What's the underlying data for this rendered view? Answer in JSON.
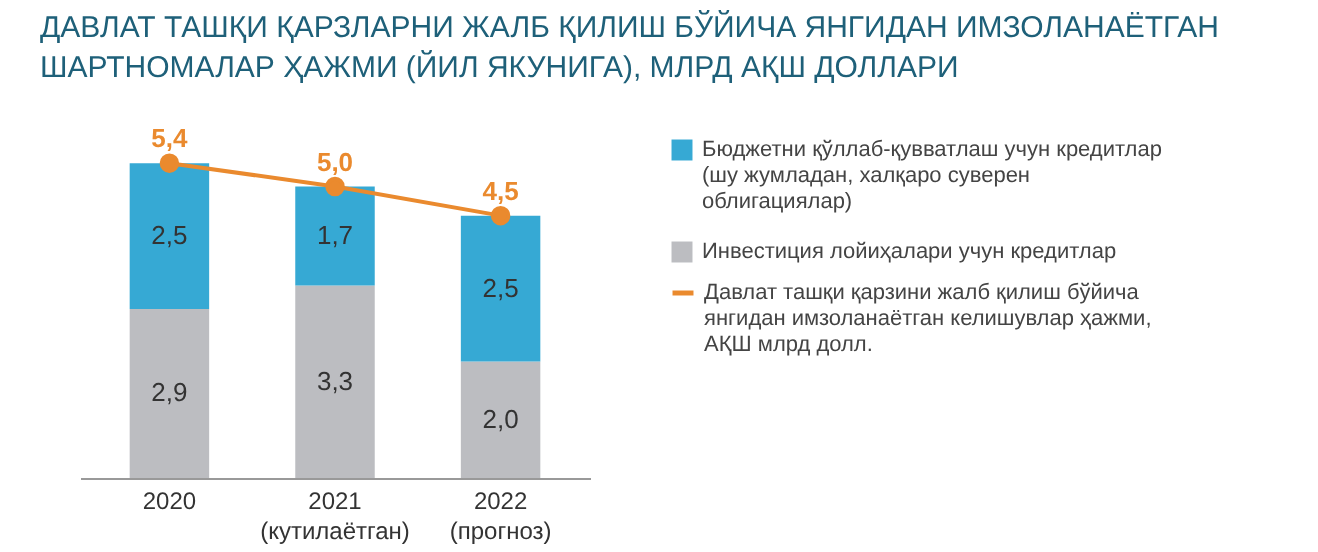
{
  "chart_data": {
    "type": "bar",
    "title": "ДАВЛАТ ТАШҚИ ҚАРЗЛАРНИ ЖАЛБ ҚИЛИШ БЎЙИЧА ЯНГИДАН ИМЗОЛАНАЁТГАН ШАРТНОМАЛАР ҲАЖМИ (ЙИЛ ЯКУНИГА), МЛРД АҚШ ДОЛЛАРИ",
    "categories": [
      "2020",
      "2021\n(кутилаётган)",
      "2022\n(прогноз)"
    ],
    "stacked": true,
    "tick_labels": "x",
    "legend": "right",
    "series": [
      {
        "name": "Инвестиция лойиҳалари учун кредитлар",
        "color": "#bcbdc1",
        "values": [
          2.9,
          3.3,
          2.0
        ],
        "value_labels": [
          "2,9",
          "3,3",
          "2,0"
        ]
      },
      {
        "name": "Бюджетни қўллаб-қувватлаш учун кредитлар (шу жумладан, халқаро суверен облигациялар)",
        "color": "#36a9d4",
        "values": [
          2.5,
          1.7,
          2.5
        ],
        "value_labels": [
          "2,5",
          "1,7",
          "2,5"
        ]
      },
      {
        "name": "Давлат ташқи қарзини жалб қилиш бўйича янгидан имзоланаётган келишувлар ҳажми, АҚШ млрд долл.",
        "type": "line",
        "color": "#ea8a2e",
        "marker": "circle",
        "line_style": "solid",
        "values": [
          5.4,
          5.0,
          4.5
        ],
        "value_labels": [
          "5,4",
          "5,0",
          "4,5"
        ]
      }
    ]
  }
}
